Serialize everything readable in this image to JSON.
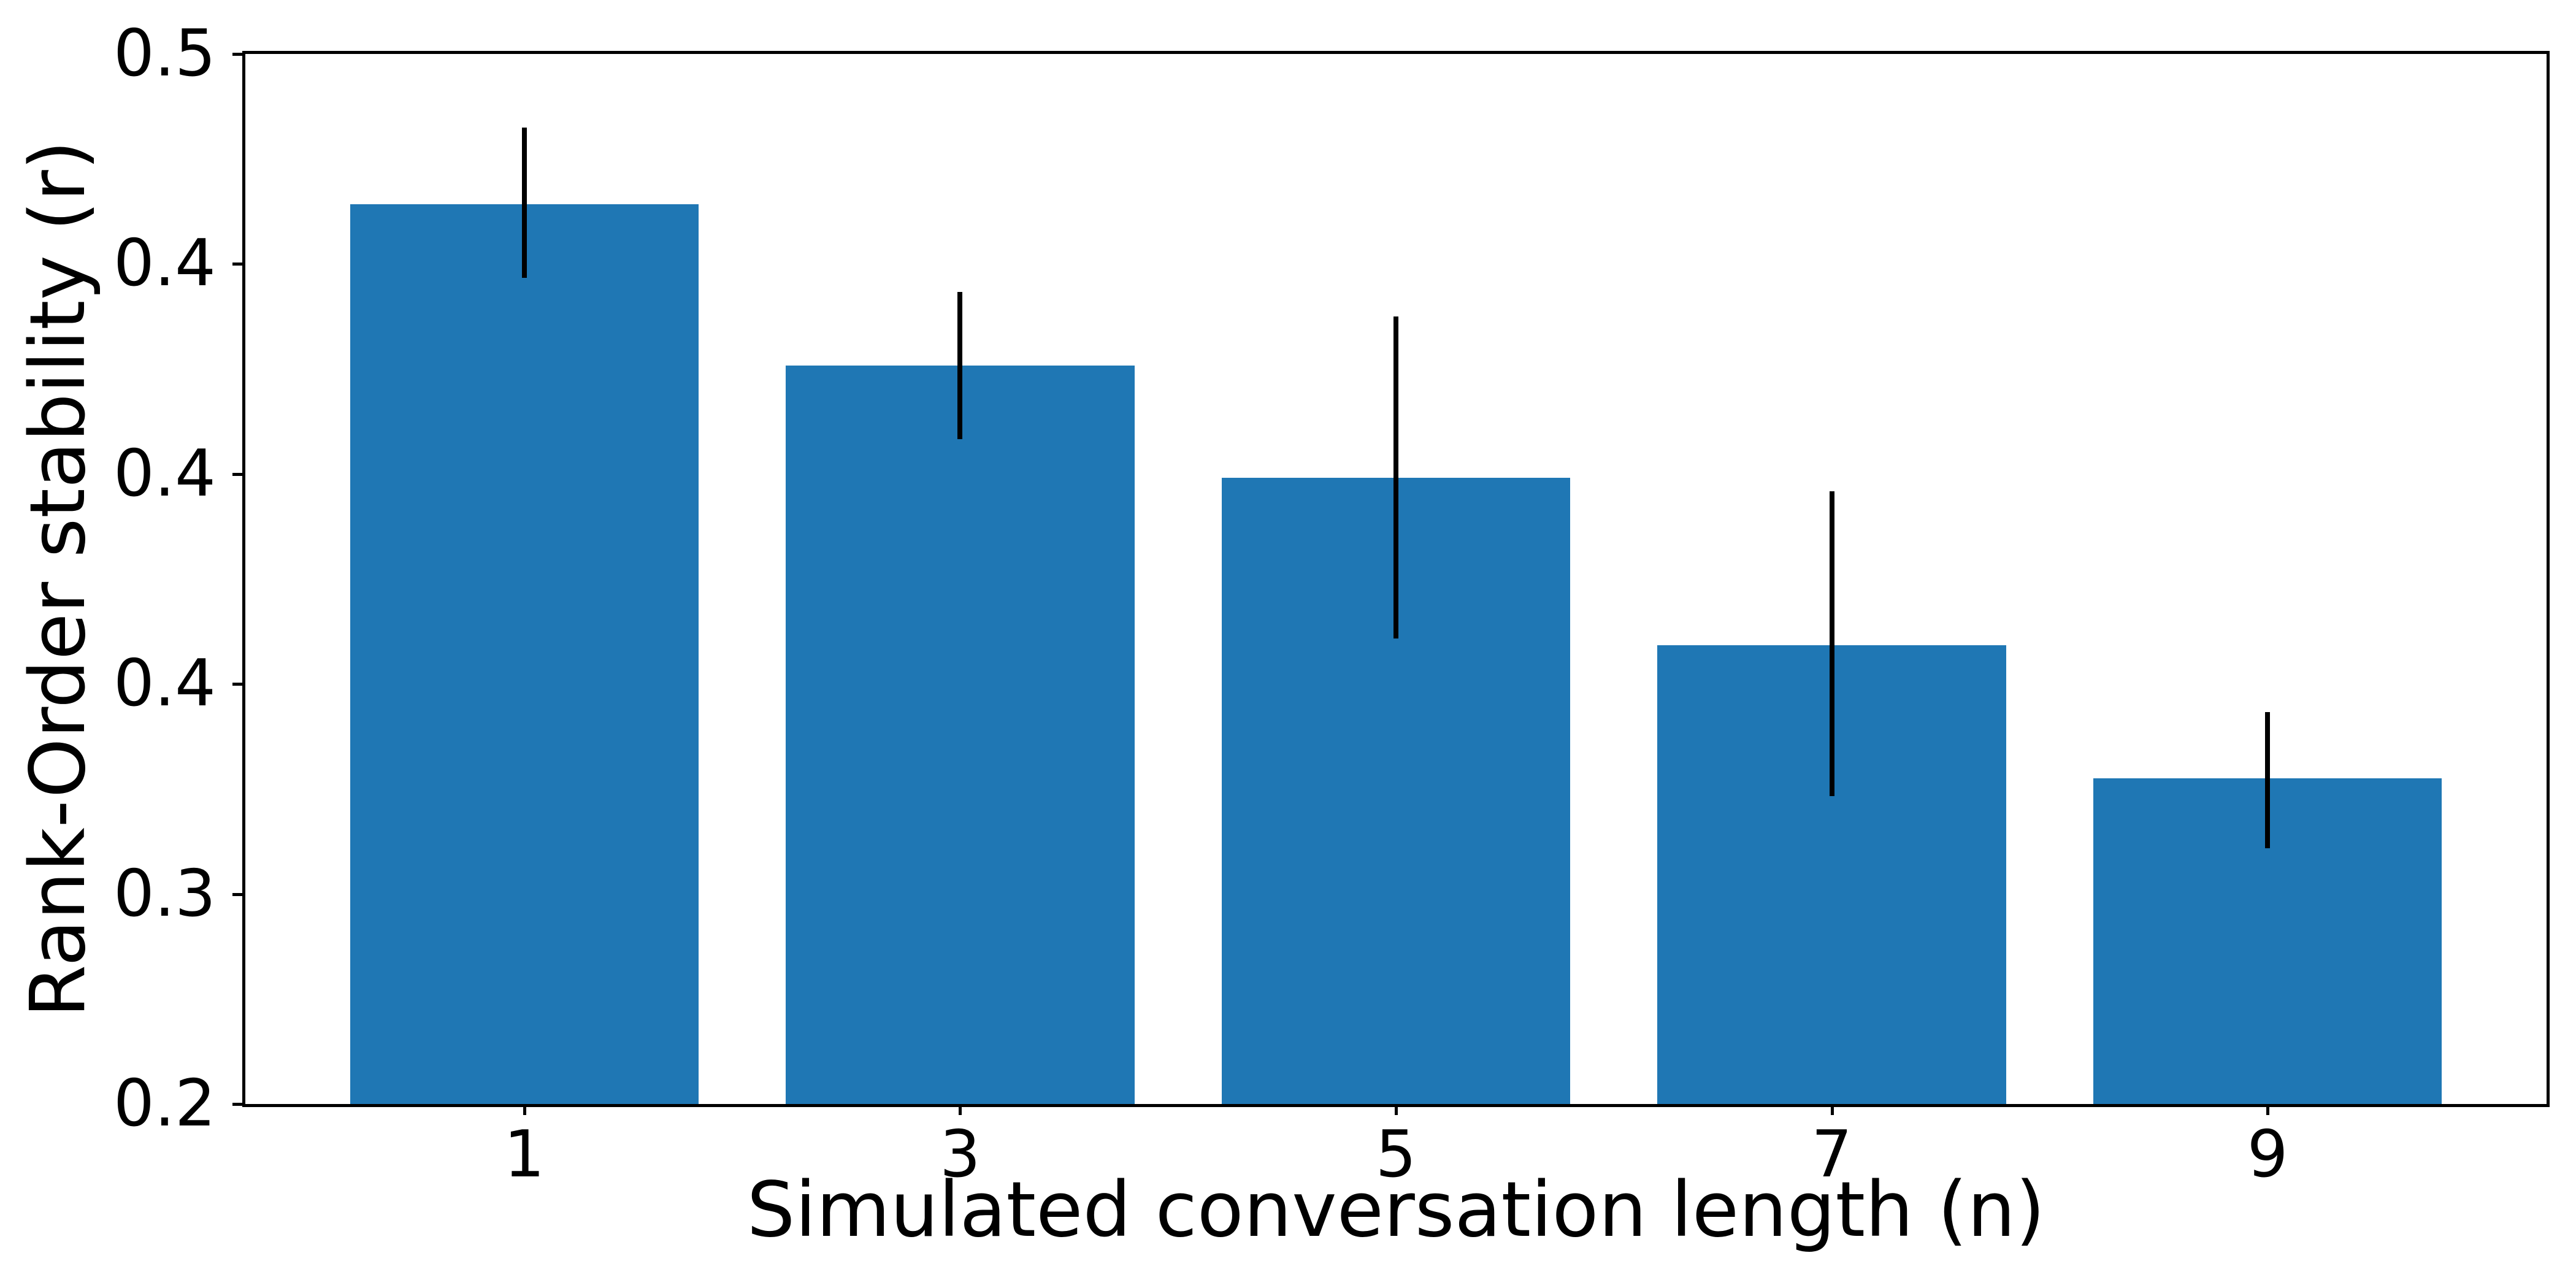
{
  "figure": {
    "background": "#ffffff",
    "bar_color": "#1f77b4",
    "error_color": "#000000",
    "axis_color": "#000000"
  },
  "chart_data": {
    "type": "bar",
    "title": "",
    "xlabel": "Simulated conversation length (n)",
    "ylabel": "Rank-Order stability (r)",
    "categories": [
      "1",
      "3",
      "5",
      "7",
      "9"
    ],
    "values": [
      0.457,
      0.411,
      0.379,
      0.331,
      0.293
    ],
    "error_low": [
      0.436,
      0.39,
      0.333,
      0.288,
      0.273
    ],
    "error_high": [
      0.479,
      0.432,
      0.425,
      0.375,
      0.312
    ],
    "ylim": [
      0.2,
      0.5
    ],
    "ytick_labels_top_to_bottom": [
      "0.5",
      "0.4",
      "0.4",
      "0.4",
      "0.3",
      "0.2"
    ],
    "xtick_labels": [
      "1",
      "3",
      "5",
      "7",
      "9"
    ],
    "bar_width_fraction": 0.8,
    "grid": false,
    "legend": null
  }
}
